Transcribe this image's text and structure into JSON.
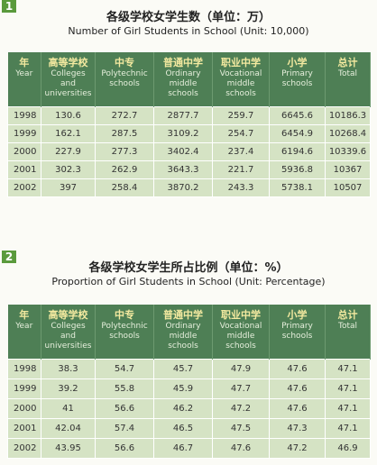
{
  "sections": [
    {
      "marker": "1",
      "title_zh": "各级学校女学生数（单位：万）",
      "title_en": "Number of Girl Students in School (Unit: 10,000)",
      "table": {
        "header": [
          {
            "zh": "年",
            "en": [
              "Year"
            ]
          },
          {
            "zh": "高等学校",
            "en": [
              "Colleges",
              "and",
              "universities"
            ]
          },
          {
            "zh": "中专",
            "en": [
              "Polytechnic",
              "schools"
            ]
          },
          {
            "zh": "普通中学",
            "en": [
              "Ordinary",
              "middle",
              "schools"
            ]
          },
          {
            "zh": "职业中学",
            "en": [
              "Vocational",
              "middle",
              "schools"
            ]
          },
          {
            "zh": "小学",
            "en": [
              "Primary",
              "schools"
            ]
          },
          {
            "zh": "总计",
            "en": [
              "Total"
            ]
          }
        ],
        "rows": [
          [
            "1998",
            "130.6",
            "272.7",
            "2877.7",
            "259.7",
            "6645.6",
            "10186.3"
          ],
          [
            "1999",
            "162.1",
            "287.5",
            "3109.2",
            "254.7",
            "6454.9",
            "10268.4"
          ],
          [
            "2000",
            "227.9",
            "277.3",
            "3402.4",
            "237.4",
            "6194.6",
            "10339.6"
          ],
          [
            "2001",
            "302.3",
            "262.9",
            "3643.3",
            "221.7",
            "5936.8",
            "10367"
          ],
          [
            "2002",
            "397",
            "258.4",
            "3870.2",
            "243.3",
            "5738.1",
            "10507"
          ]
        ]
      }
    },
    {
      "marker": "2",
      "title_zh": "各级学校女学生所占比例（单位：%）",
      "title_en": "Proportion of Girl Students in School (Unit: Percentage)",
      "table": {
        "header": [
          {
            "zh": "年",
            "en": [
              "Year"
            ]
          },
          {
            "zh": "高等学校",
            "en": [
              "Colleges",
              "and",
              "universities"
            ]
          },
          {
            "zh": "中专",
            "en": [
              "Polytechnic",
              "schools"
            ]
          },
          {
            "zh": "普通中学",
            "en": [
              "Ordinary",
              "middle",
              "schools"
            ]
          },
          {
            "zh": "职业中学",
            "en": [
              "Vocational",
              "middle",
              "schools"
            ]
          },
          {
            "zh": "小学",
            "en": [
              "Primary",
              "schools"
            ]
          },
          {
            "zh": "总计",
            "en": [
              "Total"
            ]
          }
        ],
        "rows": [
          [
            "1998",
            "38.3",
            "54.7",
            "45.7",
            "47.9",
            "47.6",
            "47.1"
          ],
          [
            "1999",
            "39.2",
            "55.8",
            "45.9",
            "47.7",
            "47.6",
            "47.1"
          ],
          [
            "2000",
            "41",
            "56.6",
            "46.2",
            "47.2",
            "47.6",
            "47.1"
          ],
          [
            "2001",
            "42.04",
            "57.4",
            "46.5",
            "47.5",
            "47.3",
            "47.1"
          ],
          [
            "2002",
            "43.95",
            "56.6",
            "46.7",
            "47.6",
            "47.2",
            "46.9"
          ]
        ]
      }
    }
  ]
}
